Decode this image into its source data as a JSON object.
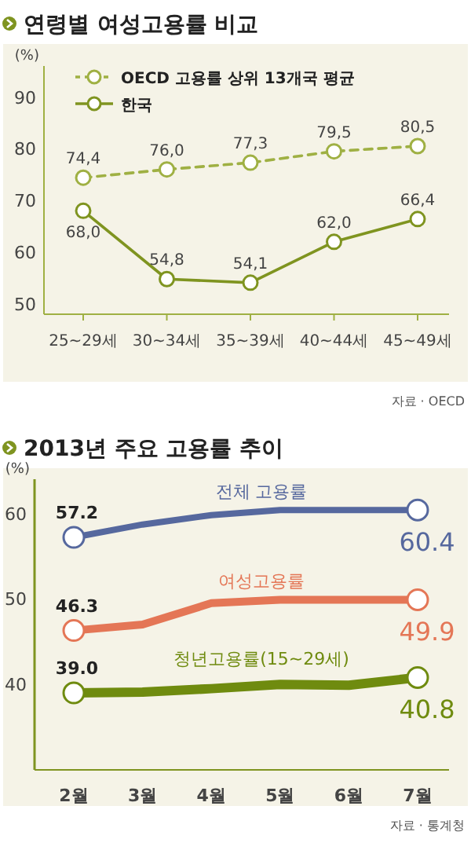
{
  "chart_data": [
    {
      "type": "line",
      "title": "연령별 여성고용률 비교",
      "ylabel": "(%)",
      "categories": [
        "25~29세",
        "30~34세",
        "35~39세",
        "40~44세",
        "45~49세"
      ],
      "ylim": [
        48,
        96
      ],
      "yticks": [
        50,
        60,
        70,
        80,
        90
      ],
      "grid": false,
      "legend": "top left",
      "marker": "circle",
      "series": [
        {
          "name": "OECD 고용률 상위 13개국 평균",
          "color": "#9fb043",
          "line_style": "dashed",
          "values": [
            74.4,
            76.0,
            77.3,
            79.5,
            80.5
          ],
          "value_labels": [
            "74,4",
            "76,0",
            "77,3",
            "79,5",
            "80,5"
          ]
        },
        {
          "name": "한국",
          "color": "#7f9420",
          "line_style": "solid",
          "values": [
            68.0,
            54.8,
            54.1,
            62.0,
            66.4
          ],
          "value_labels": [
            "68,0",
            "54,8",
            "54,1",
            "62,0",
            "66,4"
          ]
        }
      ],
      "annotations": [
        "자료 · OECD"
      ]
    },
    {
      "type": "line",
      "title": "2013년 주요 고용률 추이",
      "ylabel": "(%)",
      "categories": [
        "2월",
        "3월",
        "4월",
        "5월",
        "6월",
        "7월"
      ],
      "ylim": [
        30,
        64
      ],
      "yticks": [
        40,
        50,
        60
      ],
      "grid": false,
      "series": [
        {
          "name": "전체 고용률",
          "color": "#56689e",
          "line_style": "solid",
          "values": [
            57.2,
            58.7,
            59.8,
            60.4,
            60.4,
            60.4
          ],
          "value_labels": [
            "57.2",
            null,
            null,
            null,
            null,
            "60.4"
          ]
        },
        {
          "name": "여성고용률",
          "color": "#e47656",
          "line_style": "solid",
          "values": [
            46.3,
            47.0,
            49.5,
            49.9,
            49.9,
            49.9
          ],
          "value_labels": [
            "46.3",
            null,
            null,
            null,
            null,
            "49.9"
          ]
        },
        {
          "name": "청년고용률(15~29세)",
          "color": "#6f8b0f",
          "line_style": "solid",
          "values": [
            39.0,
            39.1,
            39.5,
            40.0,
            39.9,
            40.8
          ],
          "value_labels": [
            "39.0",
            null,
            null,
            null,
            null,
            "40.8"
          ]
        }
      ],
      "annotations": [
        "자료 · 통계청"
      ]
    }
  ]
}
